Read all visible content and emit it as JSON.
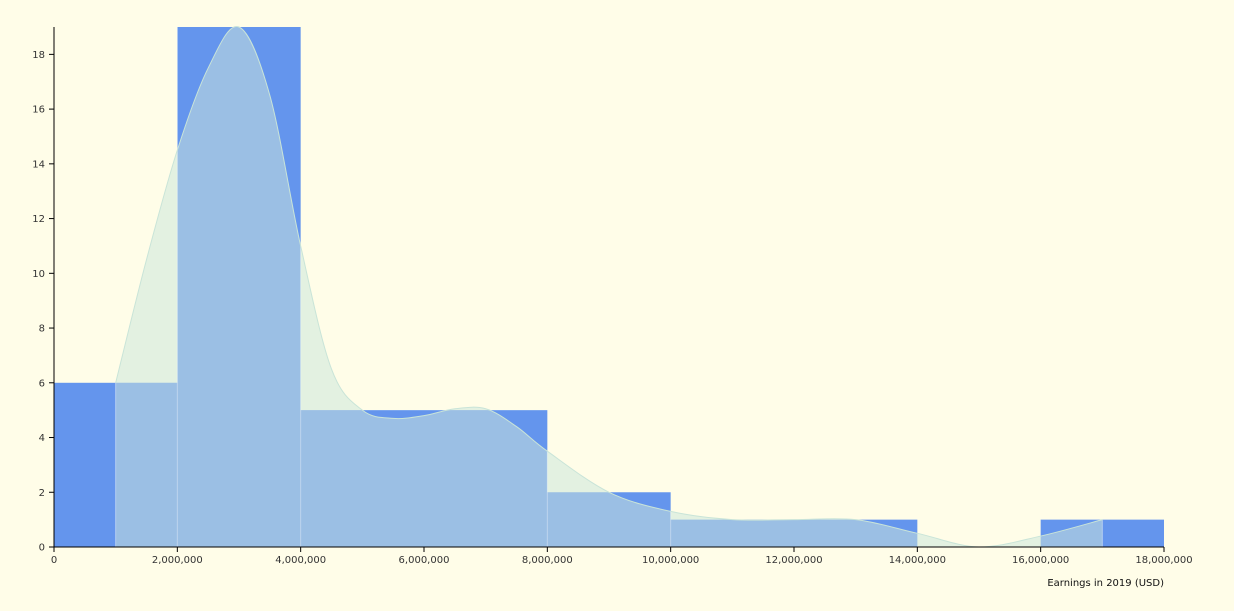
{
  "chart_data": {
    "type": "bar",
    "subtype": "histogram-with-density",
    "title": "",
    "xlabel": "Earnings in 2019 (USD)",
    "ylabel": "",
    "xlim": [
      0,
      18000000
    ],
    "ylim": [
      0,
      19
    ],
    "grid": false,
    "x_ticks": [
      0,
      2000000,
      4000000,
      6000000,
      8000000,
      10000000,
      12000000,
      14000000,
      16000000,
      18000000
    ],
    "x_tick_labels": [
      "0",
      "2,000,000",
      "4,000,000",
      "6,000,000",
      "8,000,000",
      "10,000,000",
      "12,000,000",
      "14,000,000",
      "16,000,000",
      "18,000,000"
    ],
    "y_ticks": [
      0,
      2,
      4,
      6,
      8,
      10,
      12,
      14,
      16,
      18
    ],
    "y_tick_labels": [
      "0",
      "2",
      "4",
      "6",
      "8",
      "10",
      "12",
      "14",
      "16",
      "18"
    ],
    "bins": [
      {
        "x0": 0,
        "x1": 2000000,
        "count": 6
      },
      {
        "x0": 2000000,
        "x1": 4000000,
        "count": 19
      },
      {
        "x0": 4000000,
        "x1": 8000000,
        "count": 5
      },
      {
        "x0": 8000000,
        "x1": 10000000,
        "count": 2
      },
      {
        "x0": 10000000,
        "x1": 14000000,
        "count": 1
      },
      {
        "x0": 14000000,
        "x1": 16000000,
        "count": 0
      },
      {
        "x0": 16000000,
        "x1": 18000000,
        "count": 1
      }
    ],
    "density_curve": {
      "x": [
        1000000,
        1500000,
        2000000,
        2500000,
        3000000,
        3500000,
        4000000,
        4500000,
        5000000,
        5500000,
        6000000,
        6500000,
        7000000,
        7500000,
        8000000,
        9000000,
        10000000,
        11000000,
        12000000,
        13000000,
        14000000,
        15000000,
        16000000,
        17000000
      ],
      "y": [
        6.0,
        10.5,
        14.5,
        17.5,
        19.0,
        16.5,
        11.0,
        6.5,
        5.0,
        4.7,
        4.8,
        5.05,
        5.05,
        4.4,
        3.5,
        2.0,
        1.3,
        1.0,
        1.0,
        1.0,
        0.5,
        0.0,
        0.4,
        1.0
      ]
    },
    "colors": {
      "bar": "#6495ed",
      "density_fill": "#e2f0e0",
      "overlap": "#9bbfe4",
      "density_stroke": "#c9e4d8",
      "background": "#fffde8",
      "axis": "#000000"
    }
  }
}
